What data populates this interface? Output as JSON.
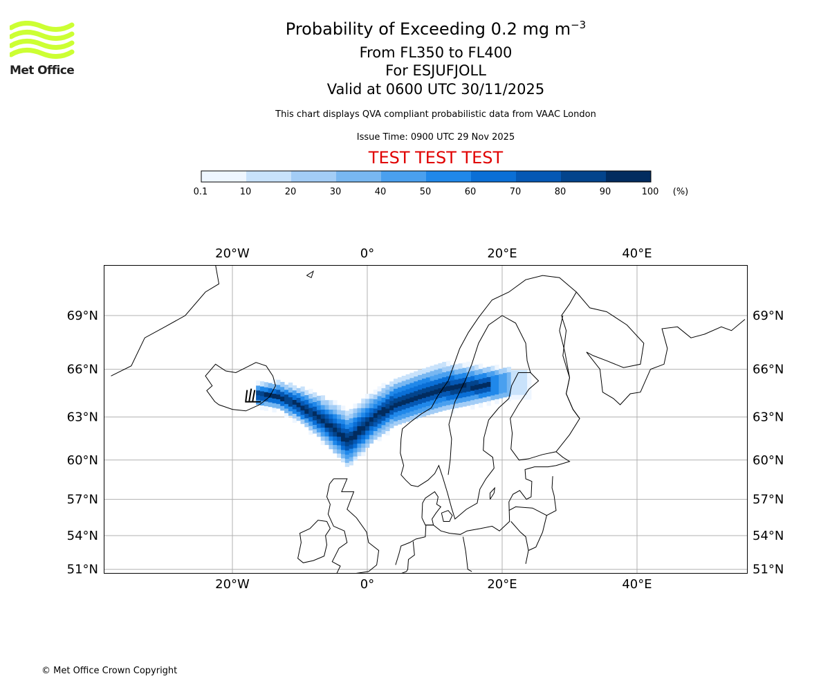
{
  "header": {
    "title_main": "Probability of Exceeding 0.2 mg m",
    "title_superscript": "−3",
    "level_range": "From FL350 to FL400",
    "volcano_line": "For ESJUFJOLL",
    "valid_line": "Valid at 0600 UTC 30/11/2025",
    "description": "This chart displays QVA compliant probabilistic data from VAAC London",
    "issue_time": "Issue Time: 0900 UTC 29 Nov 2025",
    "test_banner": "TEST TEST TEST"
  },
  "logo": {
    "text": "Met Office",
    "color": "#ccff33"
  },
  "colorbar": {
    "tick_labels": [
      "0.1",
      "10",
      "20",
      "30",
      "40",
      "50",
      "60",
      "70",
      "80",
      "90",
      "100"
    ],
    "unit": "(%)",
    "colors": [
      "#eef6ff",
      "#c8e2fb",
      "#a3cdf6",
      "#78b7f1",
      "#4aa0ef",
      "#2088ea",
      "#0a6fd6",
      "#0558b4",
      "#03448c",
      "#022c5f"
    ]
  },
  "map": {
    "lon_labels": [
      "20°W",
      "0°",
      "20°E",
      "40°E"
    ],
    "lat_labels": [
      "69°N",
      "66°N",
      "63°N",
      "60°N",
      "57°N",
      "54°N",
      "51°N"
    ],
    "lon_values": [
      -20,
      0,
      20,
      40
    ],
    "lat_values": [
      69,
      66,
      63,
      60,
      57,
      54,
      51
    ],
    "gridlines": true,
    "plume_core_color": "#022c5f",
    "plume_edge_color": "#c8e2fb"
  },
  "footer": {
    "copyright": "© Met Office Crown Copyright"
  }
}
